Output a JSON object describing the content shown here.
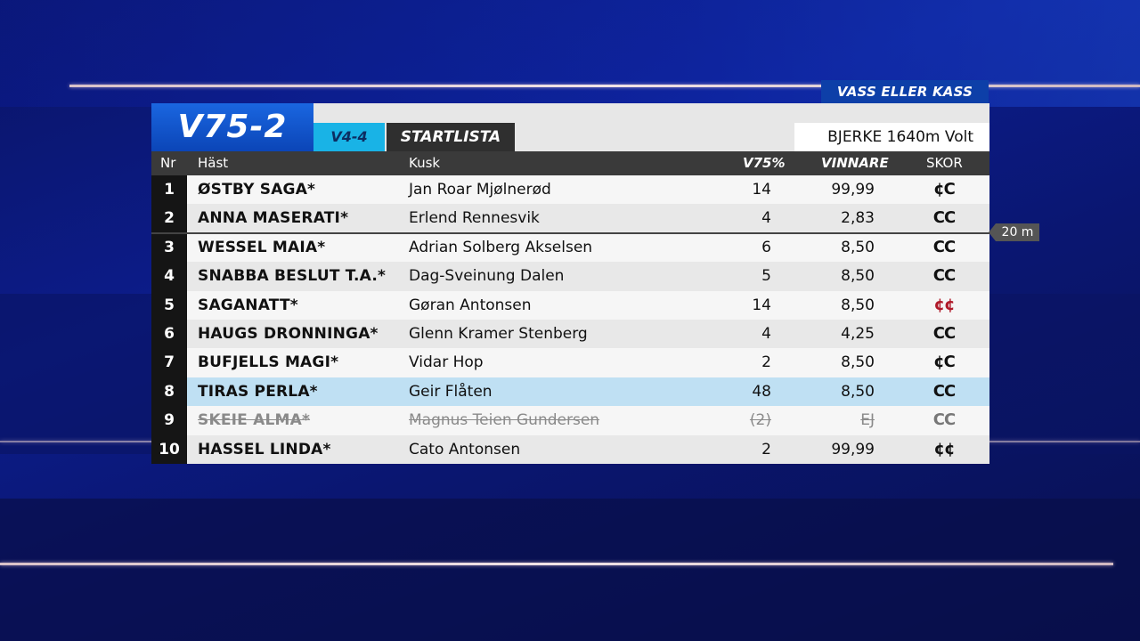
{
  "badge": "VASS ELLER KASS",
  "header": {
    "title": "V75-2",
    "tag": "V4-4",
    "list_label": "STARTLISTA",
    "venue": "BJERKE  1640m  Volt"
  },
  "columns": {
    "nr": "Nr",
    "hast": "Häst",
    "kusk": "Kusk",
    "v75": "V75%",
    "vinnare": "VINNARE",
    "skor": "SKOR"
  },
  "distance_badge": "20 m",
  "rows": [
    {
      "nr": "1",
      "hast": "ØSTBY SAGA*",
      "kusk": "Jan Roar Mjølnerød",
      "v75": "14",
      "vinnare": "99,99",
      "skor": "¢C"
    },
    {
      "nr": "2",
      "hast": "ANNA MASERATI*",
      "kusk": "Erlend Rennesvik",
      "v75": "4",
      "vinnare": "2,83",
      "skor": "CC"
    },
    {
      "nr": "3",
      "hast": "WESSEL MAIA*",
      "kusk": "Adrian Solberg Akselsen",
      "v75": "6",
      "vinnare": "8,50",
      "skor": "CC"
    },
    {
      "nr": "4",
      "hast": "SNABBA BESLUT T.A.*",
      "kusk": "Dag-Sveinung Dalen",
      "v75": "5",
      "vinnare": "8,50",
      "skor": "CC"
    },
    {
      "nr": "5",
      "hast": "SAGANATT*",
      "kusk": "Gøran Antonsen",
      "v75": "14",
      "vinnare": "8,50",
      "skor": "¢¢"
    },
    {
      "nr": "6",
      "hast": "HAUGS DRONNINGA*",
      "kusk": "Glenn Kramer Stenberg",
      "v75": "4",
      "vinnare": "4,25",
      "skor": "CC"
    },
    {
      "nr": "7",
      "hast": "BUFJELLS MAGI*",
      "kusk": "Vidar Hop",
      "v75": "2",
      "vinnare": "8,50",
      "skor": "¢C"
    },
    {
      "nr": "8",
      "hast": "TIRAS PERLA*",
      "kusk": "Geir Flåten",
      "v75": "48",
      "vinnare": "8,50",
      "skor": "CC"
    },
    {
      "nr": "9",
      "hast": "SKEIE ALMA*",
      "kusk": "Magnus Teien Gundersen",
      "v75": "(2)",
      "vinnare": "EJ",
      "skor": "CC"
    },
    {
      "nr": "10",
      "hast": "HASSEL LINDA*",
      "kusk": "Cato Antonsen",
      "v75": "2",
      "vinnare": "99,99",
      "skor": "¢¢"
    }
  ],
  "colors": {
    "scratched_text": "#8a8a8a",
    "highlight_row": "#bfe0f3",
    "red_shoes": "#b01a2a"
  }
}
